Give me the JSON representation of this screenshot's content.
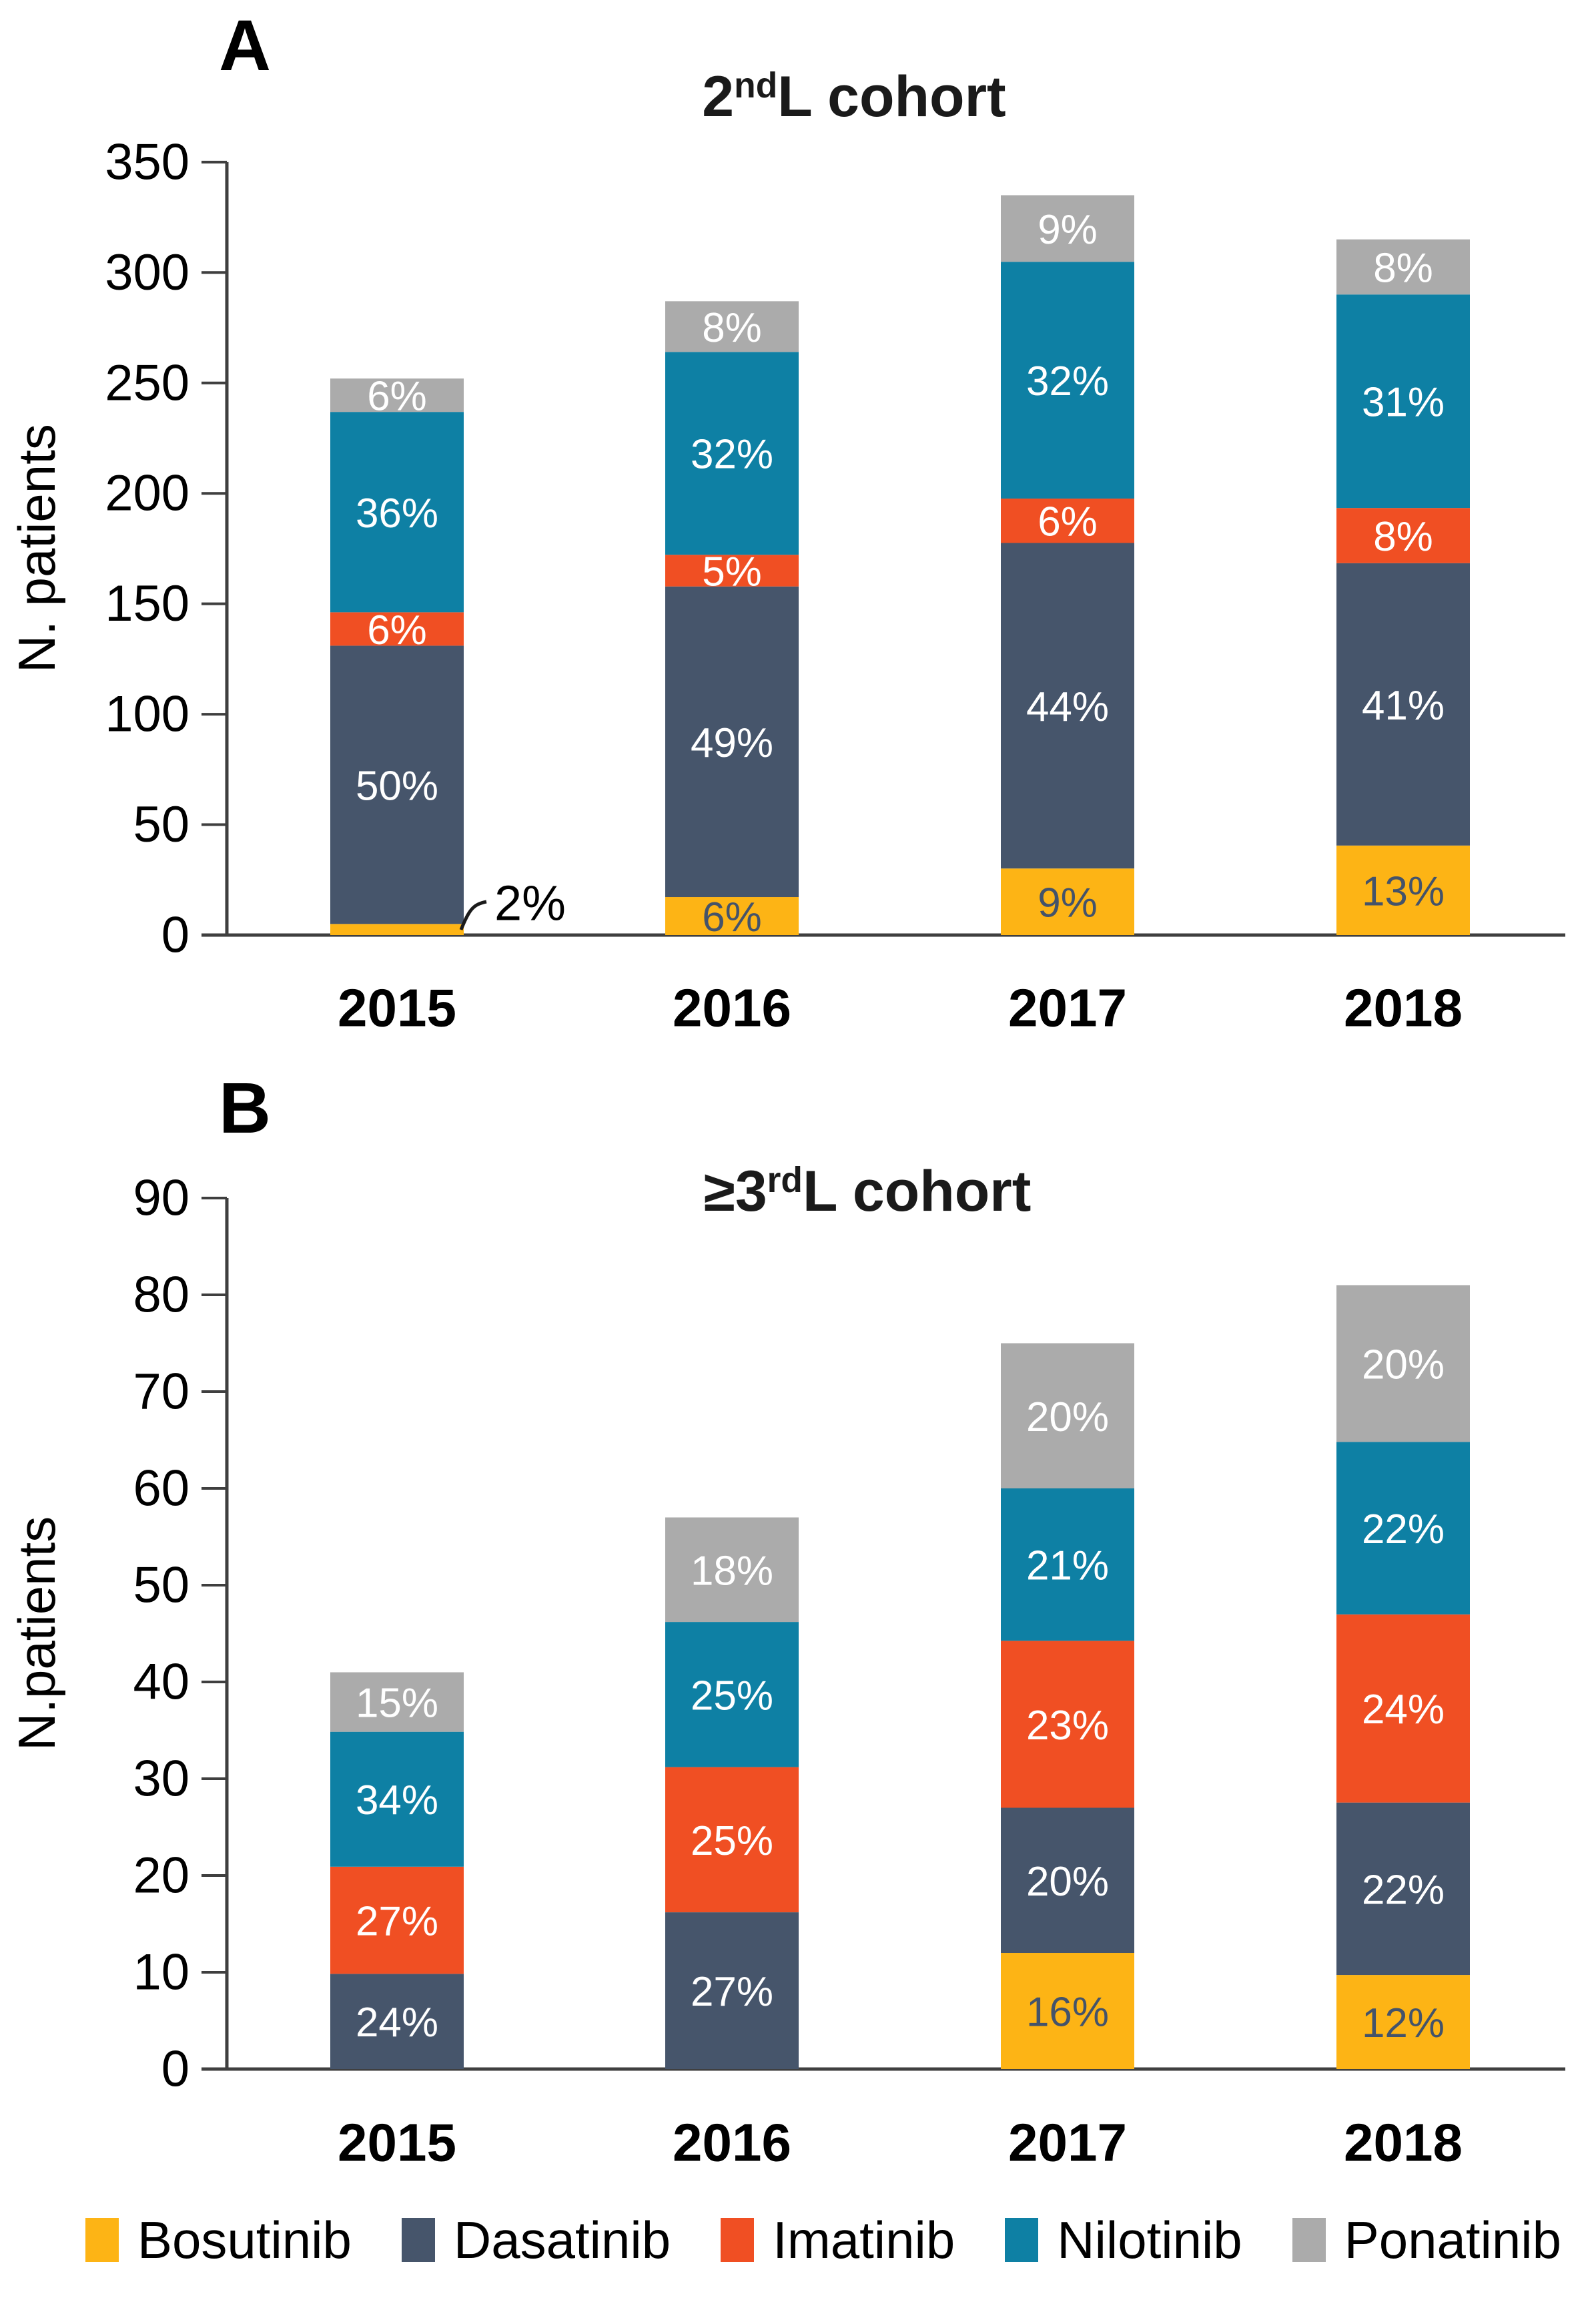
{
  "colors": {
    "bosutinib": "#FDB415",
    "dasatinib": "#46556B",
    "imatinib": "#F04F23",
    "nilotinib": "#0E80A4",
    "ponatinib": "#ABABAB",
    "axis": "#3F3F3F",
    "label_on_yellow": "#44536A",
    "label_on_color": "#FFFFFF",
    "text": "#000000"
  },
  "chart_data": [
    {
      "type": "bar",
      "stacked": true,
      "panel": "A",
      "title": {
        "prefix": "2",
        "sup": "nd",
        "suffix": "L cohort"
      },
      "ylabel": "N. patients",
      "xlabel": "",
      "ylim": [
        0,
        350
      ],
      "ytick_step": 50,
      "grid": false,
      "categories": [
        "2015",
        "2016",
        "2017",
        "2018"
      ],
      "totals": [
        252,
        287,
        335,
        315
      ],
      "series": [
        {
          "name": "Bosutinib",
          "key": "bosutinib",
          "pct": [
            2,
            6,
            9,
            13
          ]
        },
        {
          "name": "Dasatinib",
          "key": "dasatinib",
          "pct": [
            50,
            49,
            44,
            41
          ]
        },
        {
          "name": "Imatinib",
          "key": "imatinib",
          "pct": [
            6,
            5,
            6,
            8
          ]
        },
        {
          "name": "Nilotinib",
          "key": "nilotinib",
          "pct": [
            36,
            32,
            32,
            31
          ]
        },
        {
          "name": "Ponatinib",
          "key": "ponatinib",
          "pct": [
            6,
            8,
            9,
            8
          ]
        }
      ],
      "callout": {
        "text": "2%",
        "series": "Bosutinib",
        "category": "2015"
      }
    },
    {
      "type": "bar",
      "stacked": true,
      "panel": "B",
      "title": {
        "prefix": "≥3",
        "sup": "rd",
        "suffix": "L cohort"
      },
      "ylabel": "N.patients",
      "xlabel": "",
      "ylim": [
        0,
        90
      ],
      "ytick_step": 10,
      "grid": false,
      "categories": [
        "2015",
        "2016",
        "2017",
        "2018"
      ],
      "totals": [
        41,
        57,
        75,
        81
      ],
      "series": [
        {
          "name": "Bosutinib",
          "key": "bosutinib",
          "pct": [
            0,
            0,
            16,
            12
          ]
        },
        {
          "name": "Dasatinib",
          "key": "dasatinib",
          "pct": [
            24,
            27,
            20,
            22
          ]
        },
        {
          "name": "Imatinib",
          "key": "imatinib",
          "pct": [
            27,
            25,
            23,
            24
          ]
        },
        {
          "name": "Nilotinib",
          "key": "nilotinib",
          "pct": [
            34,
            25,
            21,
            22
          ]
        },
        {
          "name": "Ponatinib",
          "key": "ponatinib",
          "pct": [
            15,
            18,
            20,
            20
          ]
        }
      ]
    }
  ],
  "legend": {
    "position": "bottom",
    "items": [
      {
        "label": "Bosutinib",
        "key": "bosutinib",
        "color": "#FDB415"
      },
      {
        "label": "Dasatinib",
        "key": "dasatinib",
        "color": "#46556B"
      },
      {
        "label": "Imatinib",
        "key": "imatinib",
        "color": "#F04F23"
      },
      {
        "label": "Nilotinib",
        "key": "nilotinib",
        "color": "#0E80A4"
      },
      {
        "label": "Ponatinib",
        "key": "ponatinib",
        "color": "#ABABAB"
      }
    ]
  }
}
